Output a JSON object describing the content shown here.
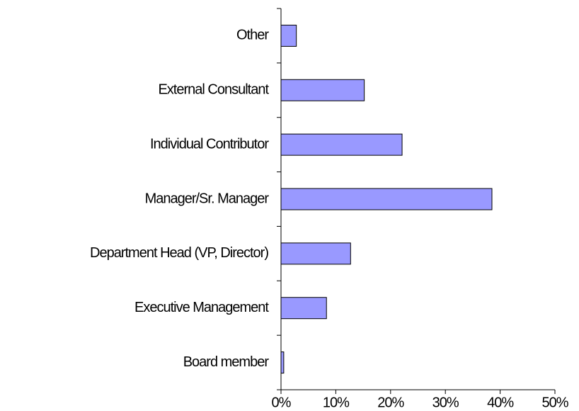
{
  "chart_data": {
    "type": "bar",
    "orientation": "horizontal",
    "categories": [
      "Other",
      "External Consultant",
      "Individual Contributor",
      "Manager/Sr. Manager",
      "Department Head (VP, Director)",
      "Executive Management",
      "Board member"
    ],
    "values": [
      2.8,
      15.2,
      22.1,
      38.5,
      12.7,
      8.3,
      0.5
    ],
    "color": "#9999ff",
    "xlim": [
      0,
      50
    ],
    "xticks": [
      {
        "value": 0,
        "label": "0%"
      },
      {
        "value": 10,
        "label": "10%"
      },
      {
        "value": 20,
        "label": "20%"
      },
      {
        "value": 30,
        "label": "30%"
      },
      {
        "value": 40,
        "label": "40%"
      },
      {
        "value": 50,
        "label": "50%"
      }
    ],
    "grid": false
  }
}
